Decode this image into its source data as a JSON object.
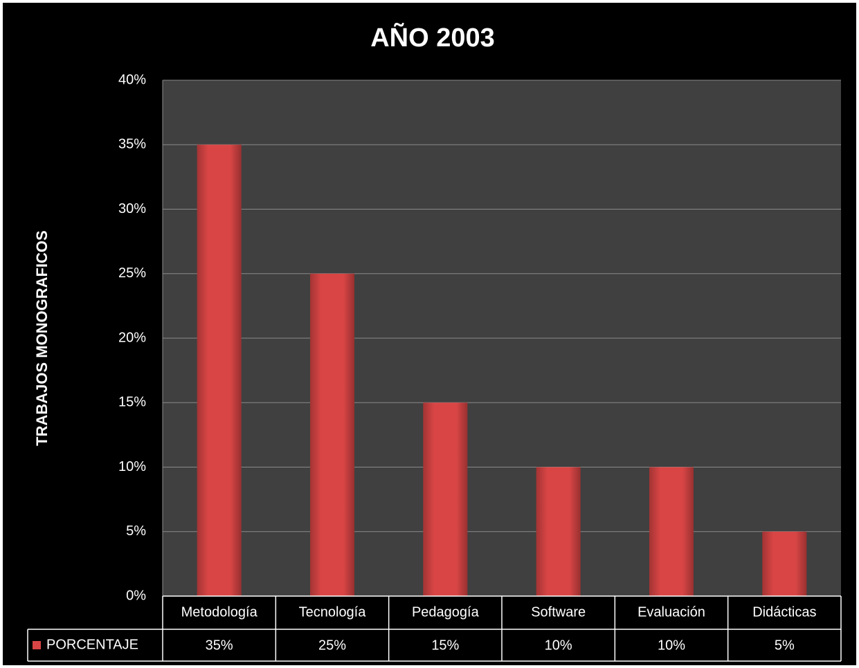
{
  "chart_data": {
    "type": "bar",
    "title": "AÑO 2003",
    "y_label": "TRABAJOS MONOGRAFICOS",
    "categories": [
      "Metodología",
      "Tecnología",
      "Pedagogía",
      "Software",
      "Evaluación",
      "Didácticas"
    ],
    "series": [
      {
        "name": "PORCENTAJE",
        "color": "#d94545",
        "values": [
          35,
          25,
          15,
          10,
          10,
          5
        ],
        "value_labels": [
          "35%",
          "25%",
          "15%",
          "10%",
          "10%",
          "5%"
        ]
      }
    ],
    "ylim": [
      0,
      40
    ],
    "yticks": [
      {
        "value": 0,
        "label": "0%"
      },
      {
        "value": 5,
        "label": "5%"
      },
      {
        "value": 10,
        "label": "10%"
      },
      {
        "value": 15,
        "label": "15%"
      },
      {
        "value": 20,
        "label": "20%"
      },
      {
        "value": 25,
        "label": "25%"
      },
      {
        "value": 30,
        "label": "30%"
      },
      {
        "value": 35,
        "label": "35%"
      },
      {
        "value": 40,
        "label": "40%"
      }
    ],
    "grid": true,
    "legend": "bottom"
  }
}
